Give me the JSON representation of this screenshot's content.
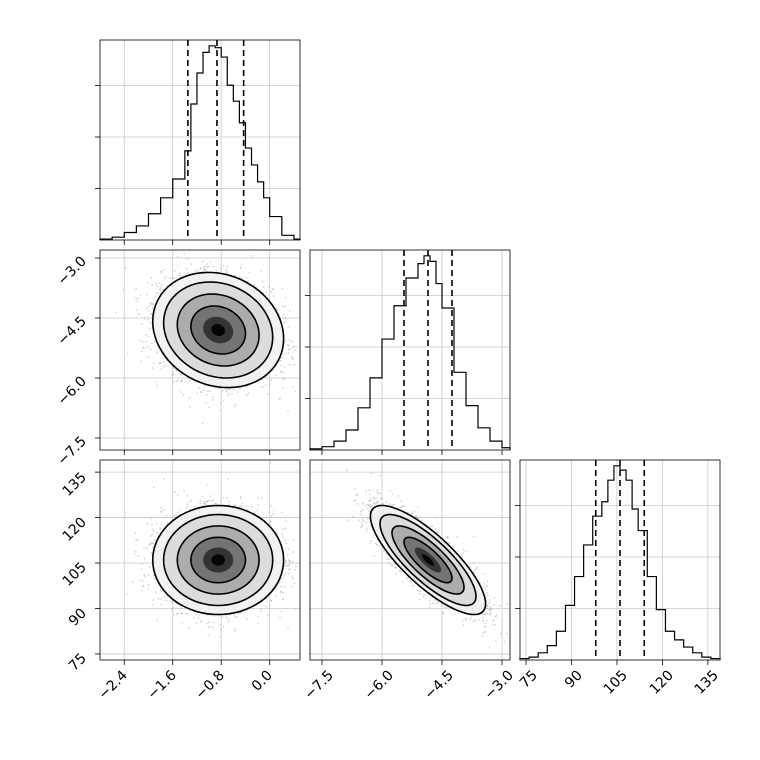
{
  "chart_data": {
    "type": "corner",
    "grid": true,
    "x_tick_labels": {
      "param_0": [
        "−2.4",
        "−1.6",
        "−0.8",
        "0.0"
      ],
      "param_1": [
        "−7.5",
        "−6.0",
        "−4.5",
        "−3.0"
      ],
      "param_2": [
        "75",
        "90",
        "105",
        "120",
        "135"
      ]
    },
    "y_tick_labels": {
      "param_1": [
        "−3.0",
        "−4.5",
        "−6.0",
        "−7.5"
      ],
      "param_2": [
        "135",
        "120",
        "105",
        "90",
        "75"
      ]
    },
    "params": [
      {
        "xlim": [
          -2.8,
          0.5
        ],
        "ticks": [
          -2.4,
          -1.6,
          -0.8,
          0.0
        ],
        "quantiles": [
          -1.35,
          -0.87,
          -0.43
        ]
      },
      {
        "xlim": [
          -7.8,
          -2.8
        ],
        "ticks": [
          -7.5,
          -6.0,
          -4.5,
          -3.0
        ],
        "quantiles": [
          -5.45,
          -4.85,
          -4.25
        ]
      },
      {
        "xlim": [
          73,
          139
        ],
        "ticks": [
          75,
          90,
          105,
          120,
          135
        ],
        "quantiles": [
          98,
          106,
          114
        ]
      }
    ],
    "histograms": [
      {
        "param": 0,
        "bin_edges": [
          -2.8,
          -2.6,
          -2.4,
          -2.2,
          -2.0,
          -1.8,
          -1.6,
          -1.4,
          -1.3,
          -1.2,
          -1.1,
          -1.0,
          -0.9,
          -0.8,
          -0.7,
          -0.6,
          -0.5,
          -0.4,
          -0.3,
          -0.2,
          -0.1,
          0.0,
          0.2,
          0.4,
          0.5
        ],
        "counts": [
          1,
          3,
          8,
          15,
          28,
          45,
          65,
          95,
          145,
          178,
          200,
          207,
          205,
          195,
          165,
          148,
          125,
          98,
          80,
          62,
          45,
          25,
          5,
          1
        ]
      },
      {
        "param": 1,
        "bin_edges": [
          -7.8,
          -7.5,
          -7.2,
          -6.9,
          -6.6,
          -6.3,
          -6.0,
          -5.7,
          -5.4,
          -5.1,
          -4.95,
          -4.8,
          -4.65,
          -4.5,
          -4.2,
          -3.9,
          -3.6,
          -3.3,
          -3.0,
          -2.8
        ],
        "counts": [
          1,
          3,
          8,
          18,
          38,
          65,
          100,
          130,
          155,
          168,
          175,
          170,
          150,
          128,
          70,
          40,
          20,
          8,
          2
        ]
      },
      {
        "param": 2,
        "bin_edges": [
          73,
          76,
          79,
          82,
          85,
          88,
          91,
          94,
          97,
          100,
          102,
          104,
          106,
          108,
          110,
          112,
          115,
          118,
          121,
          124,
          127,
          130,
          133,
          136,
          139
        ],
        "counts": [
          1,
          2,
          5,
          10,
          20,
          38,
          58,
          80,
          100,
          110,
          125,
          135,
          132,
          125,
          105,
          90,
          58,
          35,
          20,
          14,
          9,
          5,
          2,
          1
        ]
      }
    ],
    "pairs": [
      {
        "xparam": 0,
        "yparam": 1,
        "center": [
          -0.85,
          -4.8
        ],
        "sigma": [
          0.45,
          0.6
        ],
        "rho": -0.15,
        "samples": 5000,
        "contours": [
          {
            "level": 0.39,
            "radius": 1.0
          },
          {
            "level": 0.68,
            "radius": 1.5
          },
          {
            "level": 0.86,
            "radius": 2.0
          },
          {
            "level": 0.95,
            "radius": 2.4
          }
        ]
      },
      {
        "xparam": 0,
        "yparam": 2,
        "center": [
          -0.85,
          106
        ],
        "sigma": [
          0.45,
          7.5
        ],
        "rho": 0.0,
        "samples": 5000,
        "contours": [
          {
            "level": 0.39,
            "radius": 1.0
          },
          {
            "level": 0.68,
            "radius": 1.5
          },
          {
            "level": 0.86,
            "radius": 2.0
          },
          {
            "level": 0.95,
            "radius": 2.4
          }
        ]
      },
      {
        "xparam": 1,
        "yparam": 2,
        "center": [
          -4.85,
          106
        ],
        "sigma": [
          0.6,
          7.5
        ],
        "rho": -0.8,
        "samples": 5000,
        "contours": [
          {
            "level": 0.39,
            "radius": 1.0
          },
          {
            "level": 0.68,
            "radius": 1.5
          },
          {
            "level": 0.86,
            "radius": 2.0
          },
          {
            "level": 0.95,
            "radius": 2.4
          }
        ]
      }
    ]
  }
}
